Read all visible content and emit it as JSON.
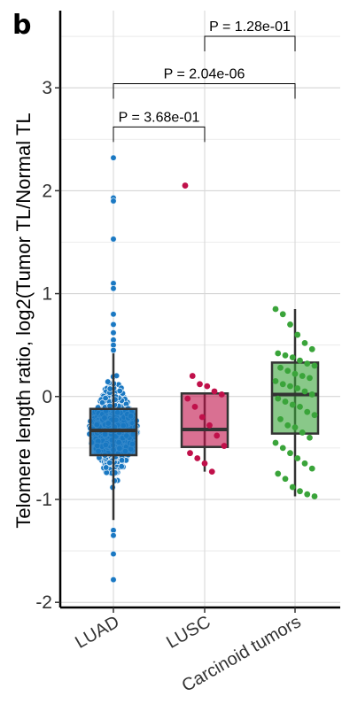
{
  "panel_letter": "b",
  "chart_data": {
    "type": "box-swarm",
    "ylabel": "Telomere length ratio, log2(Tumor TL/Normal TL",
    "ylim": [
      -2.05,
      3.75
    ],
    "yticks": [
      -2,
      -1,
      0,
      1,
      2,
      3
    ],
    "grid": true,
    "categories": [
      "LUAD",
      "LUSC",
      "Carcinoid tumors"
    ],
    "series": [
      {
        "name": "LUAD",
        "color": "#1a78c2",
        "box": {
          "q1": -0.57,
          "median": -0.33,
          "q3": -0.12,
          "whisker_low": -1.2,
          "whisker_high": 0.5
        },
        "points": [
          2.32,
          1.93,
          1.9,
          1.53,
          1.1,
          1.05,
          0.8,
          0.7,
          0.62,
          0.55,
          0.5,
          0.45,
          -1.3,
          -1.35,
          -1.53,
          -1.78
        ]
      },
      {
        "name": "LUSC",
        "color": "#c0104a",
        "box": {
          "q1": -0.49,
          "median": -0.32,
          "q3": 0.03,
          "whisker_low": -0.73,
          "whisker_high": 0.03
        },
        "points": [
          2.05,
          0.2,
          0.12,
          0.1,
          0.05,
          0.02,
          -0.02,
          -0.1,
          -0.2,
          -0.28,
          -0.38,
          -0.48,
          -0.55,
          -0.6,
          -0.65,
          -0.73
        ]
      },
      {
        "name": "Carcinoid tumors",
        "color": "#3aa43a",
        "box": {
          "q1": -0.36,
          "median": 0.02,
          "q3": 0.33,
          "whisker_low": -0.97,
          "whisker_high": 0.85
        },
        "points": [
          0.85,
          0.8,
          0.7,
          0.6,
          0.52,
          0.46,
          0.42,
          0.4,
          0.38,
          0.35,
          0.32,
          0.3,
          0.28,
          0.25,
          0.22,
          0.2,
          0.18,
          0.15,
          0.12,
          0.1,
          0.08,
          0.05,
          0.02,
          -0.02,
          -0.05,
          -0.08,
          -0.1,
          -0.15,
          -0.18,
          -0.22,
          -0.28,
          -0.3,
          -0.35,
          -0.4,
          -0.45,
          -0.5,
          -0.55,
          -0.6,
          -0.65,
          -0.7,
          -0.75,
          -0.8,
          -0.88,
          -0.92,
          -0.95,
          -0.97
        ]
      }
    ],
    "comparisons": [
      {
        "from": "LUAD",
        "to": "LUSC",
        "label": "P = 3.68e-01",
        "y": 2.62
      },
      {
        "from": "LUAD",
        "to": "Carcinoid tumors",
        "label": "P = 2.04e-06",
        "y": 3.04
      },
      {
        "from": "LUSC",
        "to": "Carcinoid tumors",
        "label": "P = 1.28e-01",
        "y": 3.5
      }
    ]
  }
}
